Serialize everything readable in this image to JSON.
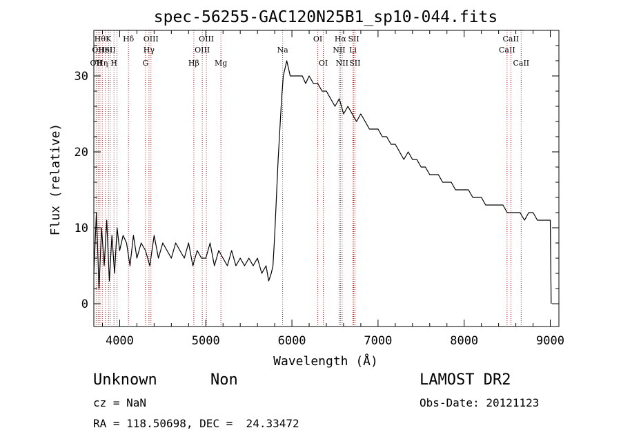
{
  "chart_data": {
    "type": "line",
    "title": "spec-56255-GAC120N25B1_sp10-044.fits",
    "xlabel": "Wavelength (Å)",
    "ylabel": "Flux (relative)",
    "xlim": [
      3700,
      9100
    ],
    "ylim": [
      -3,
      36
    ],
    "xticks": [
      {
        "value": 4000,
        "label": "4000"
      },
      {
        "value": 5000,
        "label": "5000"
      },
      {
        "value": 6000,
        "label": "6000"
      },
      {
        "value": 7000,
        "label": "7000"
      },
      {
        "value": 8000,
        "label": "8000"
      },
      {
        "value": 9000,
        "label": "9000"
      }
    ],
    "yticks": [
      {
        "value": 0,
        "label": "0"
      },
      {
        "value": 10,
        "label": "10"
      },
      {
        "value": 20,
        "label": "20"
      },
      {
        "value": 30,
        "label": "30"
      }
    ],
    "grid": false,
    "line_color": "#000000",
    "marker_color": "#b22222",
    "series": [
      {
        "x": [
          3700,
          3730,
          3760,
          3790,
          3820,
          3850,
          3880,
          3910,
          3940,
          3970,
          4000,
          4040,
          4080,
          4120,
          4160,
          4200,
          4250,
          4300,
          4350,
          4400,
          4450,
          4500,
          4550,
          4600,
          4650,
          4700,
          4750,
          4800,
          4850,
          4900,
          4950,
          5000,
          5050,
          5100,
          5150,
          5200,
          5250,
          5300,
          5350,
          5400,
          5450,
          5500,
          5550,
          5600,
          5650,
          5700,
          5730,
          5760,
          5780,
          5800,
          5820,
          5840,
          5860,
          5880,
          5900,
          5920,
          5940,
          5960,
          5980,
          6000,
          6040,
          6080,
          6120,
          6160,
          6200,
          6250,
          6300,
          6350,
          6400,
          6450,
          6500,
          6550,
          6600,
          6650,
          6700,
          6750,
          6800,
          6850,
          6900,
          6950,
          7000,
          7050,
          7100,
          7150,
          7200,
          7250,
          7300,
          7350,
          7400,
          7450,
          7500,
          7550,
          7600,
          7650,
          7700,
          7750,
          7800,
          7850,
          7900,
          7950,
          8000,
          8050,
          8100,
          8150,
          8200,
          8250,
          8300,
          8350,
          8400,
          8450,
          8500,
          8550,
          8600,
          8650,
          8700,
          8750,
          8800,
          8850,
          8900,
          8950,
          8980,
          9000,
          9010
        ],
        "y": [
          4,
          12,
          2,
          10,
          5,
          11,
          3,
          9,
          4,
          10,
          7,
          9,
          8,
          5,
          9,
          6,
          8,
          7,
          5,
          9,
          6,
          8,
          7,
          6,
          8,
          7,
          6,
          8,
          5,
          7,
          6,
          6,
          8,
          5,
          7,
          6,
          5,
          7,
          5,
          6,
          5,
          6,
          5,
          6,
          4,
          5,
          3,
          4,
          5,
          9,
          14,
          19,
          23,
          27,
          30,
          31,
          32,
          31,
          30,
          30,
          30,
          30,
          30,
          29,
          30,
          29,
          29,
          28,
          28,
          27,
          26,
          27,
          25,
          26,
          25,
          24,
          25,
          24,
          23,
          23,
          23,
          22,
          22,
          21,
          21,
          20,
          19,
          20,
          19,
          19,
          18,
          18,
          17,
          17,
          17,
          16,
          16,
          16,
          15,
          15,
          15,
          15,
          14,
          14,
          14,
          13,
          13,
          13,
          13,
          13,
          12,
          12,
          12,
          12,
          11,
          12,
          12,
          11,
          11,
          11,
          11,
          11,
          0
        ]
      }
    ],
    "line_markers": [
      {
        "wl": 3727,
        "label": "OII",
        "row": 3
      },
      {
        "wl": 3750,
        "label": "OII",
        "row": 2
      },
      {
        "wl": 3771,
        "label": "Hθ",
        "row": 1
      },
      {
        "wl": 3798,
        "label": "Hη",
        "row": 3
      },
      {
        "wl": 3835,
        "label": "HeI",
        "row": 2
      },
      {
        "wl": 3870,
        "label": "K",
        "row": 1
      },
      {
        "wl": 3889,
        "label": "SII",
        "row": 2
      },
      {
        "wl": 3934,
        "label": "H",
        "row": 3
      },
      {
        "wl": 3969,
        "label": "",
        "row": 0
      },
      {
        "wl": 4102,
        "label": "Hδ",
        "row": 1
      },
      {
        "wl": 4300,
        "label": "G",
        "row": 3
      },
      {
        "wl": 4340,
        "label": "Hγ",
        "row": 2
      },
      {
        "wl": 4363,
        "label": "OIII",
        "row": 1
      },
      {
        "wl": 4861,
        "label": "Hβ",
        "row": 3
      },
      {
        "wl": 4959,
        "label": "OIII",
        "row": 2
      },
      {
        "wl": 5007,
        "label": "OIII",
        "row": 1
      },
      {
        "wl": 5175,
        "label": "Mg",
        "row": 3
      },
      {
        "wl": 5892,
        "label": "Na",
        "row": 2
      },
      {
        "wl": 6300,
        "label": "OI",
        "row": 1
      },
      {
        "wl": 6364,
        "label": "OI",
        "row": 3
      },
      {
        "wl": 6548,
        "label": "NII",
        "row": 2
      },
      {
        "wl": 6563,
        "label": "Hα",
        "row": 1
      },
      {
        "wl": 6583,
        "label": "NII",
        "row": 3
      },
      {
        "wl": 6708,
        "label": "Li",
        "row": 2
      },
      {
        "wl": 6717,
        "label": "SII",
        "row": 1
      },
      {
        "wl": 6731,
        "label": "SII",
        "row": 3
      },
      {
        "wl": 8498,
        "label": "CaII",
        "row": 2
      },
      {
        "wl": 8542,
        "label": "CaII",
        "row": 1
      },
      {
        "wl": 8662,
        "label": "CaII",
        "row": 3
      }
    ]
  },
  "info": {
    "class": "Unknown",
    "subclass": "Non",
    "survey": "LAMOST DR2",
    "cz": "cz = NaN",
    "obs_date": "Obs-Date: 20121123",
    "coords": "RA = 118.50698, DEC =  24.33472"
  }
}
